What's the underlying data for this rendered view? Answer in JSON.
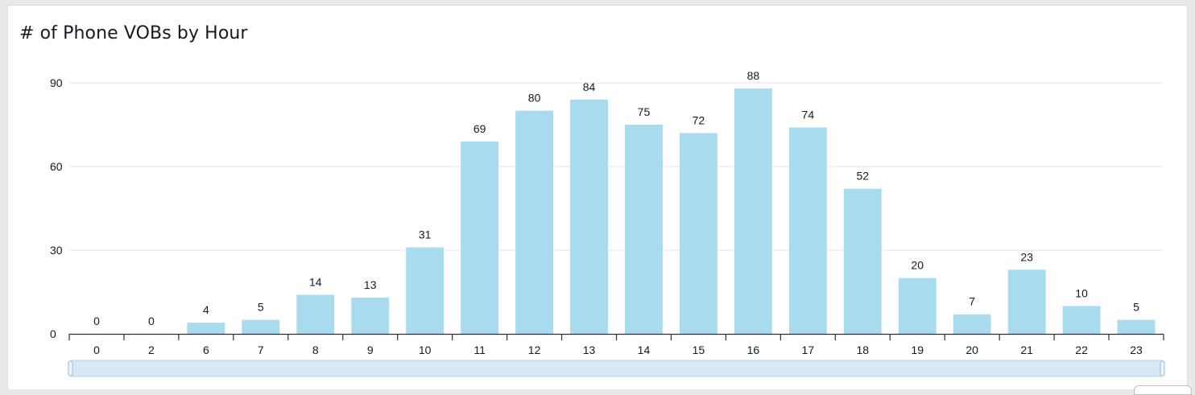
{
  "title": "# of Phone VOBs by Hour",
  "colors": {
    "bar": "#a9dbef",
    "grid": "#e4e4e4",
    "axis": "#2f2f2f",
    "label": "#16191f",
    "scrollbar": "#d7e8f5",
    "scrollbar_border": "#b9d2e6"
  },
  "chart_data": {
    "type": "bar",
    "title": "# of Phone VOBs by Hour",
    "categories": [
      "0",
      "2",
      "6",
      "7",
      "8",
      "9",
      "10",
      "11",
      "12",
      "13",
      "14",
      "15",
      "16",
      "17",
      "18",
      "19",
      "20",
      "21",
      "22",
      "23"
    ],
    "values": [
      0,
      0,
      4,
      5,
      14,
      13,
      31,
      69,
      80,
      84,
      75,
      72,
      88,
      74,
      52,
      20,
      7,
      23,
      10,
      5
    ],
    "yticks": [
      0,
      30,
      60,
      90
    ],
    "ylim": [
      0,
      90
    ],
    "grid": true,
    "legend": "none",
    "data_labels": true
  }
}
